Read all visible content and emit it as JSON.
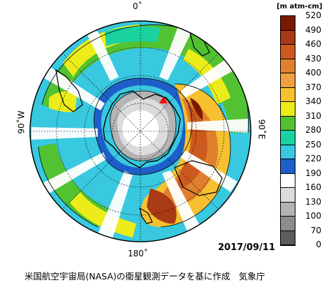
{
  "map": {
    "label_top": "0˚",
    "label_bottom": "180˚",
    "label_left": "90˚W",
    "label_right": "90˚E",
    "date": "2017/09/11",
    "credit": "米国航空宇宙局(NASA)の衛星観測データを基に作成　気象庁",
    "station_marker": "red-triangle"
  },
  "colorbar": {
    "unit": "[m atm-cm]",
    "ticks": [
      "520",
      "490",
      "460",
      "430",
      "400",
      "370",
      "340",
      "310",
      "280",
      "250",
      "220",
      "190",
      "160",
      "130",
      "100",
      "70",
      "0"
    ],
    "colors": [
      "#7a1a00",
      "#a83a14",
      "#cc5a1e",
      "#e0802e",
      "#f0a040",
      "#f6c030",
      "#ecec1a",
      "#52c232",
      "#1ad2a0",
      "#38c8e0",
      "#1e5ec8",
      "#ffffff",
      "#dcdcdc",
      "#b4b4b4",
      "#8c8c8c",
      "#5c5c5c",
      "#2c2c2c"
    ]
  }
}
